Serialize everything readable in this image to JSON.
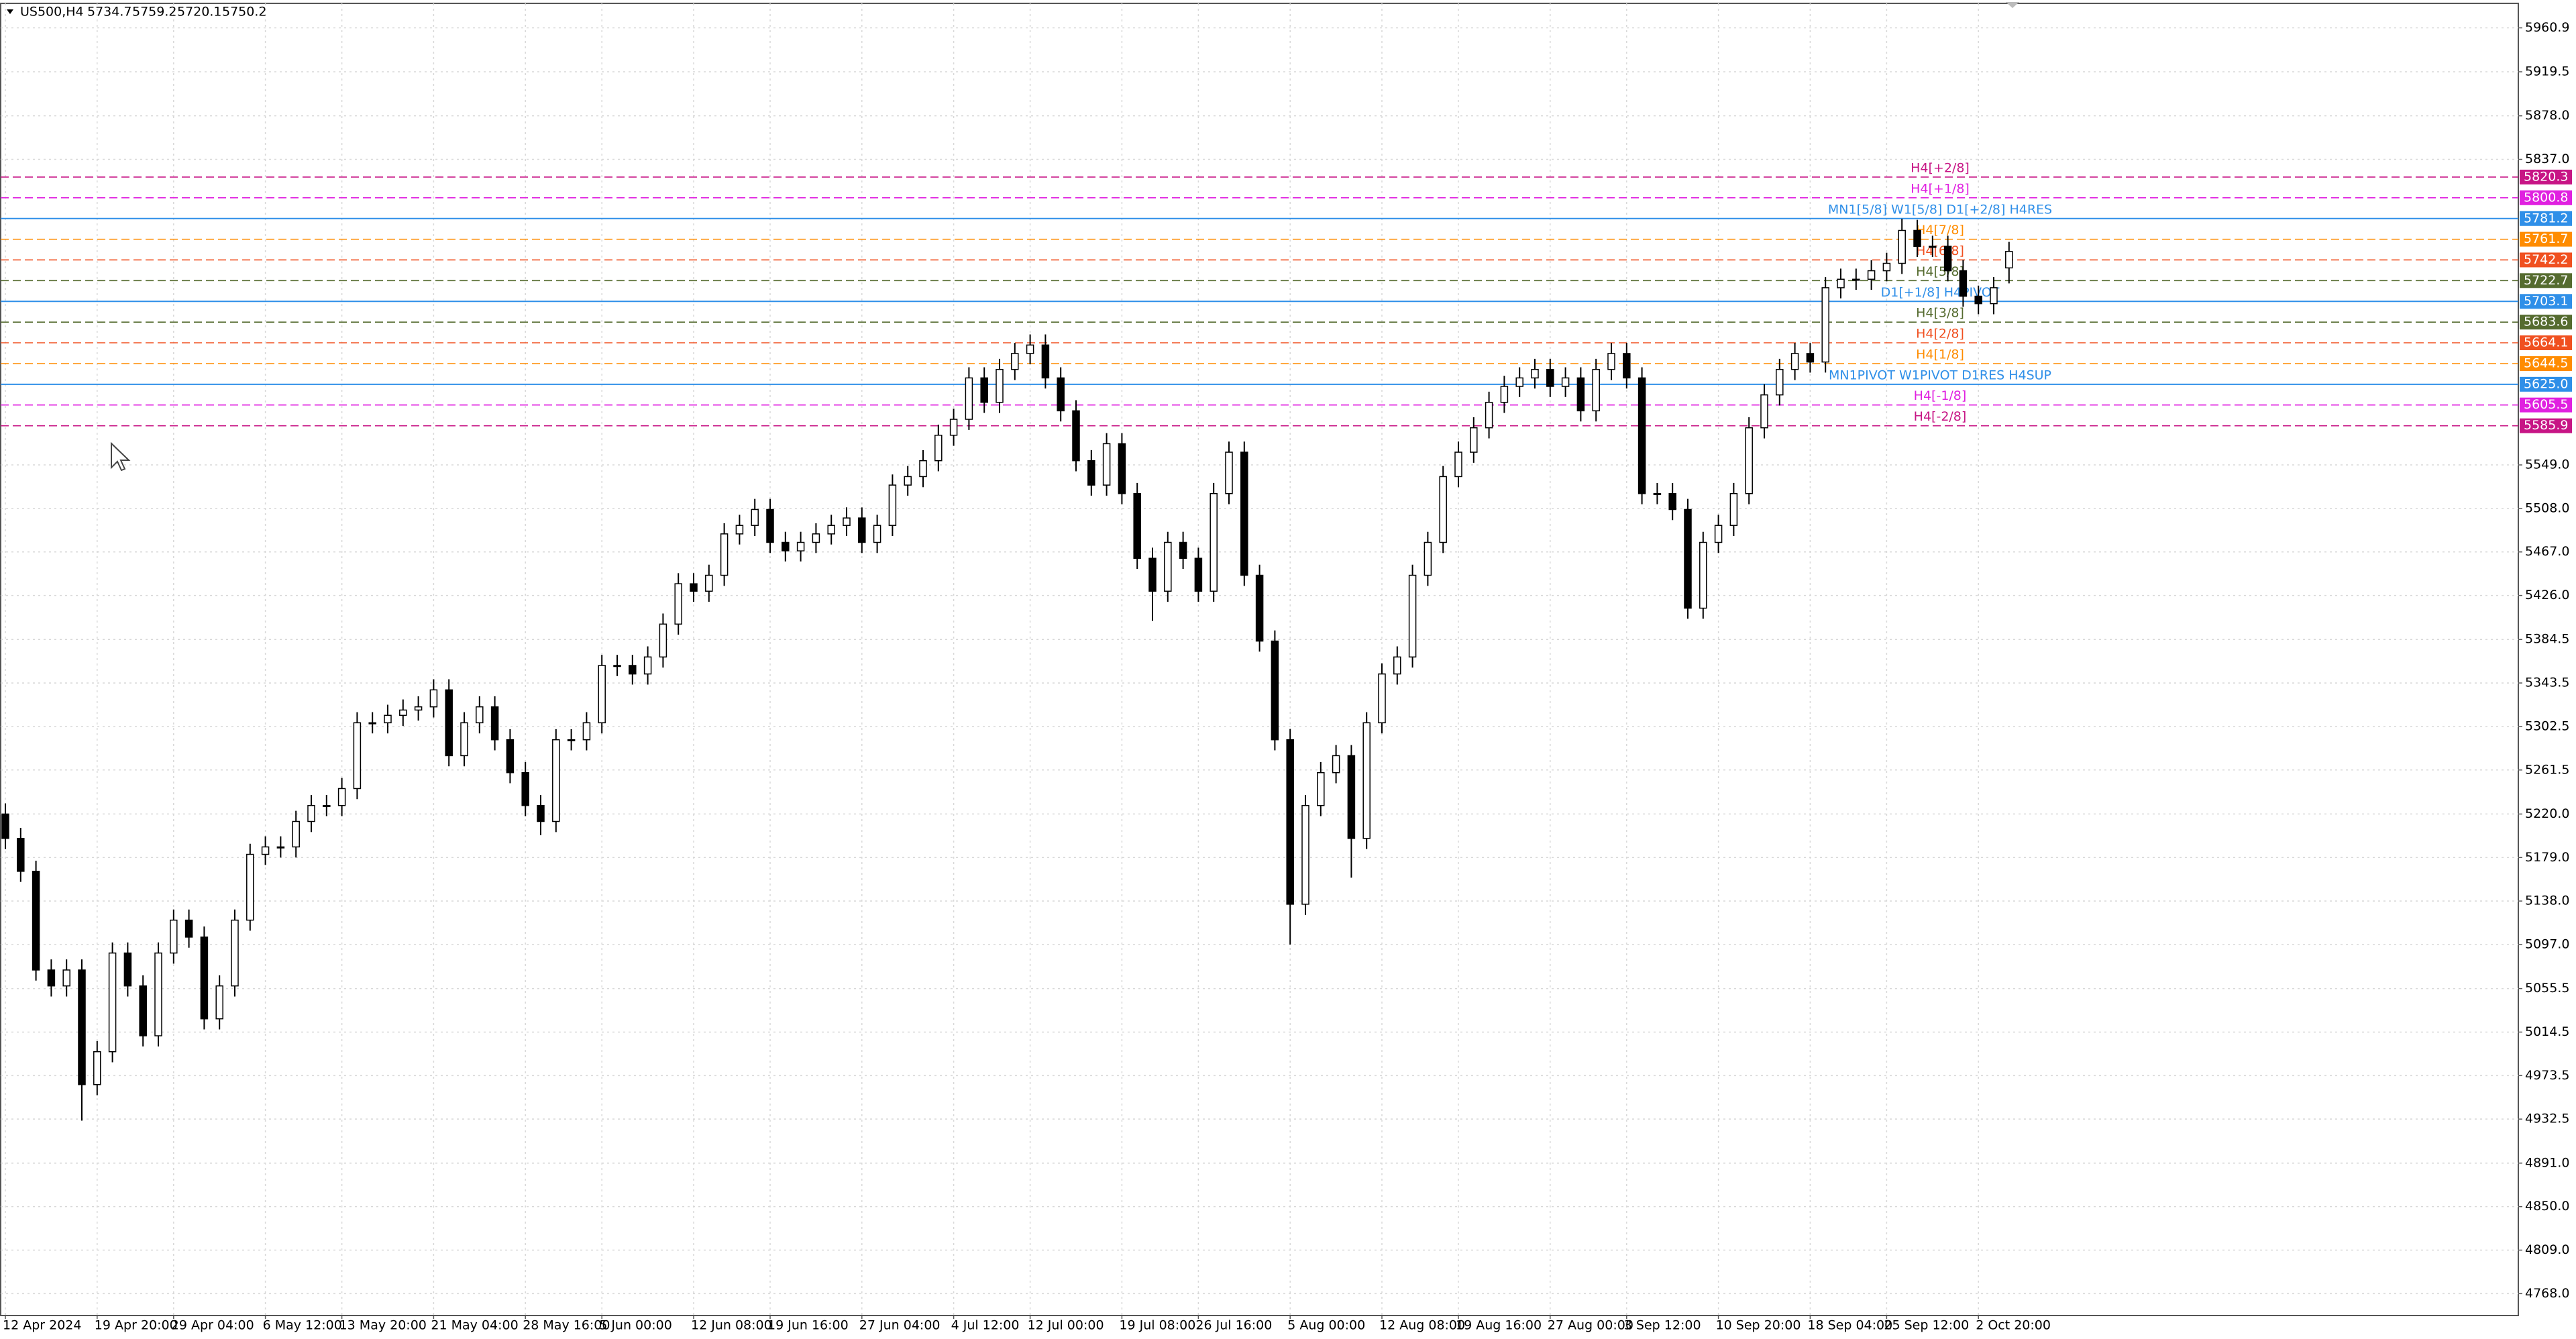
{
  "chart_data": {
    "type": "candlestick",
    "symbol": "US500,H4",
    "categories": [
      "12 Apr 2024",
      null,
      null,
      null,
      null,
      null,
      "19 Apr 20:00",
      null,
      null,
      null,
      null,
      "29 Apr 04:00",
      null,
      null,
      null,
      null,
      null,
      "6 May 12:00",
      null,
      null,
      null,
      null,
      "13 May 20:00",
      null,
      null,
      null,
      null,
      null,
      "21 May 04:00",
      null,
      null,
      null,
      null,
      null,
      "28 May 16:00",
      null,
      null,
      null,
      null,
      "5 Jun 00:00",
      null,
      null,
      null,
      null,
      null,
      "12 Jun 08:00",
      null,
      null,
      null,
      null,
      "19 Jun 16:00",
      null,
      null,
      null,
      null,
      null,
      "27 Jun 04:00",
      null,
      null,
      null,
      null,
      null,
      "4 Jul 12:00",
      null,
      null,
      null,
      null,
      "12 Jul 00:00",
      null,
      null,
      null,
      null,
      null,
      "19 Jul 08:00",
      null,
      null,
      null,
      null,
      "26 Jul 16:00",
      null,
      null,
      null,
      null,
      null,
      "5 Aug 00:00",
      null,
      null,
      null,
      null,
      null,
      "12 Aug 08:00",
      null,
      null,
      null,
      null,
      "19 Aug 16:00",
      null,
      null,
      null,
      null,
      null,
      "27 Aug 00:00",
      null,
      null,
      null,
      null,
      "3 Sep 12:00",
      null,
      null,
      null,
      null,
      null,
      "10 Sep 20:00",
      null,
      null,
      null,
      null,
      null,
      "18 Sep 04:00",
      null,
      null,
      null,
      null,
      "25 Sep 12:00",
      null,
      null,
      null,
      null,
      null,
      "2 Oct 20:00",
      null,
      null
    ],
    "open": [
      5220,
      5197,
      5166,
      5073,
      5058,
      5073,
      4965,
      4996,
      5089,
      5058,
      5011,
      5089,
      5120,
      5104,
      5027,
      5058,
      5120,
      5182,
      5189,
      5189,
      5213,
      5228,
      5228,
      5244,
      5306,
      5306,
      5313,
      5318,
      5321,
      5337,
      5275,
      5306,
      5321,
      5290,
      5259,
      5228,
      5213,
      5290,
      5290,
      5306,
      5360,
      5360,
      5352,
      5368,
      5399,
      5437,
      5430,
      5445,
      5484,
      5492,
      5507,
      5476,
      5468,
      5476,
      5484,
      5492,
      5499,
      5476,
      5492,
      5530,
      5538,
      5553,
      5577,
      5592,
      5631,
      5608,
      5639,
      5654,
      5662,
      5631,
      5600,
      5553,
      5530,
      5569,
      5522,
      5461,
      5430,
      5476,
      5461,
      5430,
      5522,
      5561,
      5445,
      5383,
      5290,
      5135,
      5228,
      5259,
      5275,
      5197,
      5306,
      5352,
      5368,
      5445,
      5476,
      5538,
      5561,
      5584,
      5608,
      5623,
      5631,
      5639,
      5623,
      5631,
      5600,
      5639,
      5654,
      5631,
      5522,
      5522,
      5507,
      5414,
      5476,
      5492,
      5522,
      5584,
      5615,
      5639,
      5654,
      5646,
      5716,
      5724,
      5724,
      5732,
      5739,
      5770,
      5755,
      5755,
      5732,
      5708,
      5701,
      5734.7
    ],
    "high": [
      5230,
      5207,
      5176,
      5083,
      5083,
      5083,
      5006,
      5099,
      5099,
      5068,
      5099,
      5130,
      5130,
      5114,
      5068,
      5130,
      5192,
      5199,
      5199,
      5223,
      5238,
      5238,
      5254,
      5316,
      5316,
      5323,
      5328,
      5331,
      5347,
      5347,
      5316,
      5331,
      5331,
      5300,
      5269,
      5238,
      5300,
      5300,
      5316,
      5370,
      5370,
      5370,
      5378,
      5409,
      5447,
      5447,
      5455,
      5494,
      5502,
      5517,
      5517,
      5486,
      5486,
      5494,
      5502,
      5509,
      5509,
      5502,
      5540,
      5548,
      5563,
      5587,
      5602,
      5641,
      5641,
      5649,
      5664,
      5672,
      5672,
      5641,
      5610,
      5563,
      5579,
      5579,
      5532,
      5471,
      5486,
      5486,
      5471,
      5532,
      5571,
      5571,
      5455,
      5393,
      5300,
      5238,
      5269,
      5285,
      5285,
      5316,
      5362,
      5378,
      5455,
      5486,
      5548,
      5571,
      5594,
      5618,
      5633,
      5641,
      5649,
      5649,
      5641,
      5641,
      5649,
      5664,
      5664,
      5641,
      5532,
      5532,
      5517,
      5486,
      5502,
      5532,
      5594,
      5625,
      5649,
      5664,
      5664,
      5726,
      5734,
      5734,
      5742,
      5749,
      5781,
      5780,
      5765,
      5765,
      5742,
      5718,
      5726,
      5759.2
    ],
    "low": [
      5187,
      5156,
      5063,
      5048,
      5048,
      4931,
      4955,
      4986,
      5048,
      5001,
      5001,
      5079,
      5094,
      5017,
      5017,
      5048,
      5110,
      5172,
      5179,
      5179,
      5203,
      5218,
      5218,
      5234,
      5296,
      5296,
      5303,
      5308,
      5311,
      5265,
      5265,
      5296,
      5280,
      5249,
      5218,
      5200,
      5203,
      5280,
      5280,
      5296,
      5350,
      5342,
      5342,
      5358,
      5389,
      5420,
      5420,
      5435,
      5474,
      5482,
      5466,
      5458,
      5458,
      5466,
      5474,
      5482,
      5466,
      5466,
      5482,
      5520,
      5528,
      5543,
      5567,
      5582,
      5598,
      5598,
      5629,
      5644,
      5621,
      5590,
      5543,
      5520,
      5520,
      5512,
      5451,
      5402,
      5420,
      5451,
      5420,
      5420,
      5512,
      5435,
      5373,
      5280,
      5097,
      5125,
      5218,
      5249,
      5160,
      5187,
      5296,
      5342,
      5358,
      5435,
      5466,
      5528,
      5551,
      5574,
      5598,
      5613,
      5621,
      5613,
      5613,
      5590,
      5590,
      5629,
      5621,
      5512,
      5512,
      5497,
      5404,
      5404,
      5466,
      5482,
      5512,
      5574,
      5605,
      5629,
      5636,
      5636,
      5706,
      5714,
      5714,
      5722,
      5729,
      5745,
      5745,
      5722,
      5698,
      5691,
      5691,
      5720.1
    ],
    "close": [
      5197,
      5166,
      5073,
      5058,
      5073,
      4965,
      4996,
      5089,
      5058,
      5011,
      5089,
      5120,
      5104,
      5027,
      5058,
      5120,
      5182,
      5189,
      5189,
      5213,
      5228,
      5228,
      5244,
      5306,
      5306,
      5313,
      5318,
      5321,
      5337,
      5275,
      5306,
      5321,
      5290,
      5259,
      5228,
      5213,
      5290,
      5290,
      5306,
      5360,
      5360,
      5352,
      5368,
      5399,
      5437,
      5430,
      5445,
      5484,
      5492,
      5507,
      5476,
      5468,
      5476,
      5484,
      5492,
      5499,
      5476,
      5492,
      5530,
      5538,
      5553,
      5577,
      5592,
      5631,
      5608,
      5639,
      5654,
      5662,
      5631,
      5600,
      5553,
      5530,
      5569,
      5522,
      5461,
      5430,
      5476,
      5461,
      5430,
      5522,
      5561,
      5445,
      5383,
      5290,
      5135,
      5228,
      5259,
      5275,
      5197,
      5306,
      5352,
      5368,
      5445,
      5476,
      5538,
      5561,
      5584,
      5608,
      5623,
      5631,
      5639,
      5623,
      5631,
      5600,
      5639,
      5654,
      5631,
      5522,
      5522,
      5507,
      5414,
      5476,
      5492,
      5522,
      5584,
      5615,
      5639,
      5654,
      5646,
      5716,
      5724,
      5724,
      5732,
      5739,
      5770,
      5755,
      5755,
      5732,
      5708,
      5701,
      5716,
      5750.2
    ],
    "bull_color": "#ffffff",
    "bear_color": "#000000",
    "wick_color": "#000000",
    "ylim": [
      4748,
      5984
    ],
    "yticks": [
      5960.9,
      5919.5,
      {
        "value": 5878,
        "label": "5878.0"
      },
      {
        "value": 5837,
        "label": "5837.0"
      },
      {
        "value": 5549,
        "label": "5549.0"
      },
      {
        "value": 5508,
        "label": "5508.0"
      },
      {
        "value": 5467,
        "label": "5467.0"
      },
      {
        "value": 5426,
        "label": "5426.0"
      },
      5384.5,
      5343.5,
      5302.5,
      5261.5,
      {
        "value": 5220,
        "label": "5220.0"
      },
      {
        "value": 5179,
        "label": "5179.0"
      },
      {
        "value": 5138,
        "label": "5138.0"
      },
      {
        "value": 5097,
        "label": "5097.0"
      },
      5055.5,
      5014.5,
      4973.5,
      4932.5,
      {
        "value": 4891,
        "label": "4891.0"
      },
      {
        "value": 4850,
        "label": "4850.0"
      },
      {
        "value": 4809,
        "label": "4809.0"
      },
      {
        "value": 4768,
        "label": "4768.0"
      }
    ],
    "grid": true,
    "levels": [
      {
        "name": "H4[+2/8]",
        "value": 5820.3,
        "color": "#c71585",
        "style": "dashed"
      },
      {
        "name": "H4[+1/8]",
        "value": 5800.8,
        "color": "#e020e0",
        "style": "dashed"
      },
      {
        "name": "MN1[5/8] W1[5/8] D1[+2/8] H4RES",
        "value": 5781.2,
        "color": "#2f8fe8",
        "style": "solid"
      },
      {
        "name": "H4[7/8]",
        "value": 5761.7,
        "color": "#ff8c00",
        "style": "dashed"
      },
      {
        "name": "H4[6/8]",
        "value": 5742.2,
        "color": "#f05020",
        "style": "dashed"
      },
      {
        "name": "H4[5/8]",
        "value": 5722.7,
        "color": "#556b2f",
        "style": "dashed"
      },
      {
        "name": "D1[+1/8] H4PIVOT",
        "value": 5703.1,
        "color": "#2f8fe8",
        "style": "solid"
      },
      {
        "name": "H4[3/8]",
        "value": 5683.6,
        "color": "#556b2f",
        "style": "dashed"
      },
      {
        "name": "H4[2/8]",
        "value": 5664.1,
        "color": "#f05020",
        "style": "dashed"
      },
      {
        "name": "H4[1/8]",
        "value": 5644.5,
        "color": "#ff8c00",
        "style": "dashed"
      },
      {
        "name": "MN1PIVOT W1PIVOT D1RES H4SUP",
        "value": 5625,
        "value_label": "5625.0",
        "color": "#2f8fe8",
        "style": "solid"
      },
      {
        "name": "H4[-1/8]",
        "value": 5605.5,
        "color": "#e020e0",
        "style": "dashed"
      },
      {
        "name": "H4[-2/8]",
        "value": 5585.9,
        "color": "#c71585",
        "style": "dashed"
      }
    ]
  }
}
